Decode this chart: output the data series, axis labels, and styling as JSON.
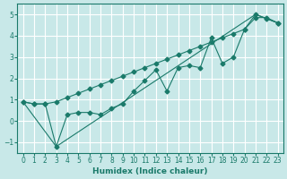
{
  "xlabel": "Humidex (Indice chaleur)",
  "ylabel": "",
  "xlim": [
    -0.5,
    23.5
  ],
  "ylim": [
    -1.5,
    5.5
  ],
  "xticks": [
    0,
    1,
    2,
    3,
    4,
    5,
    6,
    7,
    8,
    9,
    10,
    11,
    12,
    13,
    14,
    15,
    16,
    17,
    18,
    19,
    20,
    21,
    22,
    23
  ],
  "yticks": [
    -1,
    0,
    1,
    2,
    3,
    4,
    5
  ],
  "bg_color": "#c8e8e8",
  "grid_color": "#ffffff",
  "line_color": "#1a7a6a",
  "line1_x": [
    0,
    1,
    2,
    3,
    4,
    5,
    6,
    7,
    8,
    9,
    10,
    11,
    12,
    13,
    14,
    15,
    16,
    17,
    18,
    19,
    20,
    21,
    22,
    23
  ],
  "line1_y": [
    0.9,
    0.8,
    0.8,
    -1.2,
    0.3,
    0.4,
    0.4,
    0.3,
    0.6,
    0.8,
    1.4,
    1.9,
    2.4,
    1.4,
    2.5,
    2.6,
    2.5,
    3.9,
    2.7,
    3.0,
    4.3,
    5.0,
    4.8,
    4.6
  ],
  "line2_x": [
    0,
    1,
    2,
    3,
    4,
    5,
    6,
    7,
    8,
    9,
    10,
    11,
    12,
    13,
    14,
    15,
    16,
    17,
    18,
    19,
    20,
    21,
    22,
    23
  ],
  "line2_y": [
    0.9,
    0.8,
    0.8,
    0.9,
    1.1,
    1.3,
    1.5,
    1.7,
    1.9,
    2.1,
    2.3,
    2.5,
    2.7,
    2.9,
    3.1,
    3.3,
    3.5,
    3.7,
    3.9,
    4.1,
    4.3,
    4.85,
    4.85,
    4.6
  ],
  "line3_x": [
    0,
    3,
    21,
    22,
    23
  ],
  "line3_y": [
    0.9,
    -1.2,
    5.0,
    4.8,
    4.6
  ]
}
